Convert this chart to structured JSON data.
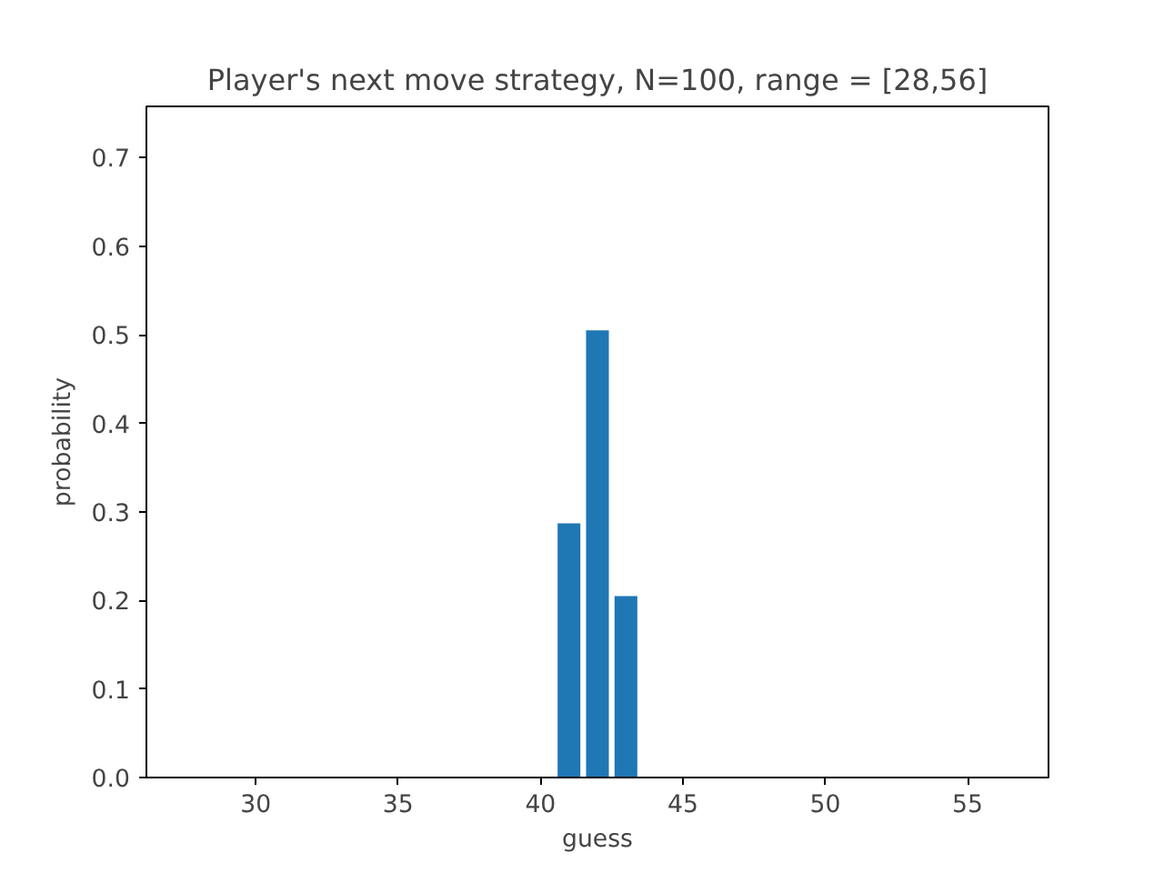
{
  "chart_data": {
    "type": "bar",
    "title": "Player's next move strategy, N=100, range = [28,56]",
    "xlabel": "guess",
    "ylabel": "probability",
    "x": [
      41,
      42,
      43
    ],
    "values": [
      0.287,
      0.505,
      0.205
    ],
    "color": "#1f77b4",
    "xlim": [
      26.16,
      57.84
    ],
    "xticks": [
      30,
      35,
      40,
      45,
      50,
      55
    ],
    "ylim": [
      0,
      0.758
    ],
    "yticks": [
      {
        "value": 0,
        "label": "0.0"
      },
      0.1,
      0.2,
      0.3,
      0.4,
      0.5,
      0.6,
      0.7
    ],
    "grid": false
  }
}
